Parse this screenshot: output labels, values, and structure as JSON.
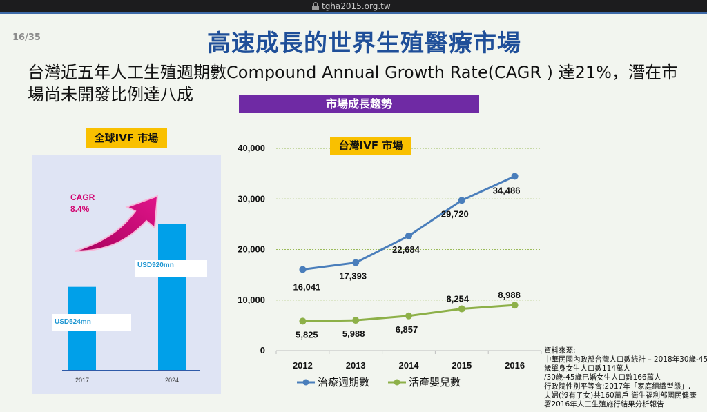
{
  "browser": {
    "url": "tgha2015.org.tw"
  },
  "slide": {
    "page_number": "16/35",
    "title": "高速成長的世界生殖醫療市場",
    "subtitle_line1": "台灣近五年人工生殖週期數Compound Annual Growth Rate(CAGR ) 達21%，潛在市",
    "subtitle_line2": "場尚未開發比例達八成",
    "market_banner": "市場成長趨勢",
    "global_label": "全球IVF 市場",
    "taiwan_label": "台灣IVF 市場"
  },
  "global_chart": {
    "cagr_label": "CAGR",
    "cagr_value": "8.4%",
    "categories": [
      "2017",
      "2024"
    ],
    "values": [
      524,
      920
    ],
    "value_labels": [
      "USD524mn",
      "USD920mn"
    ],
    "bar_color": "#00a0e9",
    "arrow_color": "#c8006e"
  },
  "chart_data": {
    "type": "line",
    "title": "台灣IVF 市場",
    "x": [
      "2012",
      "2013",
      "2014",
      "2015",
      "2016"
    ],
    "ylim": [
      0,
      40000
    ],
    "yticks": [
      "0",
      "10,000",
      "20,000",
      "30,000",
      "40,000"
    ],
    "grid": true,
    "legend_position": "bottom",
    "series": [
      {
        "name": "治療週期數",
        "values": [
          16041,
          17393,
          22684,
          29720,
          34486
        ],
        "labels": [
          "16,041",
          "17,393",
          "22,684",
          "29,720",
          "34,486"
        ],
        "color": "#4a7ebb"
      },
      {
        "name": "活產嬰兒數",
        "values": [
          5825,
          5988,
          6857,
          8254,
          8988
        ],
        "labels": [
          "5,825",
          "5,988",
          "6,857",
          "8,254",
          "8,988"
        ],
        "color": "#8db048"
      }
    ]
  },
  "source": {
    "heading": "資料來源:",
    "lines": [
      "中華民國內政部台灣人口數統計 – 2018年30歲-45",
      "歲單身女生人口數114萬人",
      "/30歲-45歲已婚女生人口數166萬人",
      "行政院性別平等會:2017年「家庭組織型態」,",
      "夫婦(沒有子女)共160萬戶 衛生福利部國民健康",
      "署2016年人工生殖施行結果分析報告"
    ]
  }
}
